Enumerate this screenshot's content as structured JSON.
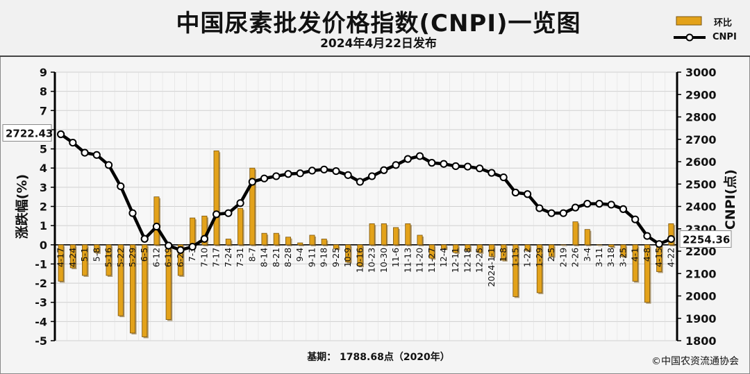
{
  "header": {
    "title": "中国尿素批发价格指数(CNPI)一览图",
    "subtitle": "2024年4月22日发布"
  },
  "legend": {
    "bar_label": "环比",
    "line_label": "CNPI"
  },
  "footer": {
    "basis": "基期：  1788.68点（2020年）",
    "credit": "©中国农资流通协会"
  },
  "colors": {
    "bar": "#e3a21a",
    "bar_dark": "#7a5510",
    "line": "#000000",
    "grid": "#cfcfcf",
    "plot_bg": "#f7f7f7"
  },
  "chart_data": {
    "type": "bar+line",
    "x": [
      "4-17",
      "4-24",
      "5-1",
      "5-8",
      "5-16",
      "5-22",
      "5-29",
      "6-5",
      "6-12",
      "6-19",
      "6-26",
      "7-3",
      "7-10",
      "7-17",
      "7-24",
      "7-31",
      "8-7",
      "8-14",
      "8-21",
      "8-28",
      "9-4",
      "9-11",
      "9-18",
      "9-25",
      "10-9",
      "10-16",
      "10-23",
      "10-30",
      "11-6",
      "11-13",
      "11-20",
      "11-27",
      "12-4",
      "12-11",
      "12-18",
      "12-25",
      "2024-1-1",
      "1-8",
      "1-15",
      "1-22",
      "1-29",
      "2-5",
      "2-19",
      "2-26",
      "3-4",
      "3-11",
      "3-18",
      "3-25",
      "4-1",
      "4-8",
      "4-15",
      "4-22"
    ],
    "series": [
      {
        "name": "环比",
        "axis": "left",
        "kind": "bar",
        "values": [
          -1.9,
          -1.2,
          -1.6,
          -0.4,
          -1.6,
          -3.7,
          -4.6,
          -4.8,
          2.5,
          -3.9,
          -1.6,
          1.4,
          1.5,
          4.9,
          0.3,
          1.9,
          4.0,
          0.6,
          0.6,
          0.4,
          0.1,
          0.5,
          0.3,
          -0.2,
          -0.9,
          -1.1,
          1.1,
          1.1,
          0.9,
          1.1,
          0.5,
          -0.7,
          -0.2,
          -0.4,
          -0.3,
          -0.4,
          -0.6,
          -0.8,
          -2.7,
          -0.3,
          -2.5,
          -0.6,
          0.0,
          1.2,
          0.8,
          0.0,
          -0.1,
          -0.6,
          -1.9,
          -3.0,
          -1.4,
          1.1
        ]
      },
      {
        "name": "CNPI",
        "axis": "right",
        "kind": "line",
        "values": [
          2722.43,
          2685,
          2640,
          2630,
          2585,
          2490,
          2370,
          2255,
          2310,
          2225,
          2205,
          2220,
          2255,
          2365,
          2370,
          2415,
          2510,
          2525,
          2535,
          2545,
          2548,
          2560,
          2565,
          2558,
          2540,
          2510,
          2535,
          2562,
          2585,
          2612,
          2625,
          2595,
          2590,
          2580,
          2578,
          2570,
          2550,
          2530,
          2462,
          2455,
          2392,
          2370,
          2370,
          2395,
          2412,
          2412,
          2408,
          2388,
          2342,
          2268,
          2232,
          2254.36
        ]
      }
    ],
    "ylabel_left": "涨跌幅(%)",
    "ylabel_right": "CNPI(点)",
    "ylim_left": [
      -5,
      9
    ],
    "ylim_right": [
      1800,
      3000
    ],
    "yticks_left": [
      "9",
      "8",
      "7",
      "6",
      "5",
      "4",
      "3",
      "2",
      "1",
      "0",
      "-1",
      "-2",
      "-3",
      "-4",
      "-5"
    ],
    "yticks_right": [
      "3000",
      "2900",
      "2800",
      "2700",
      "2600",
      "2500",
      "2400",
      "2300",
      "2200",
      "2100",
      "2000",
      "1900",
      "1800"
    ],
    "annotations": {
      "first": "2722.43",
      "last": "2254.36"
    },
    "grid": true,
    "legend_position": "top-right"
  }
}
